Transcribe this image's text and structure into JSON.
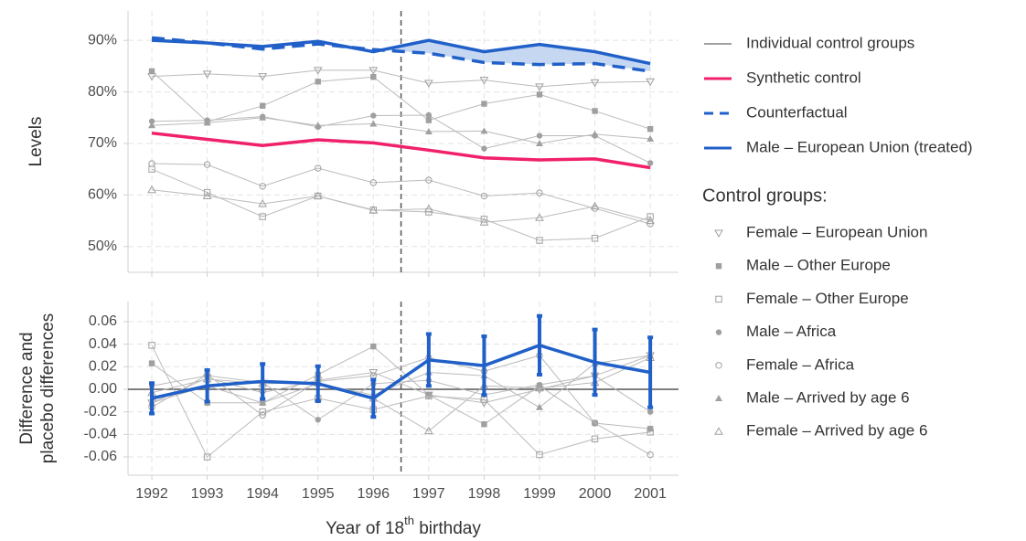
{
  "chart_data": [
    {
      "type": "line",
      "ylabel": "Levels",
      "x": [
        1992,
        1993,
        1994,
        1995,
        1996,
        1997,
        1998,
        1999,
        2000,
        2001
      ],
      "xlim": [
        1991.57,
        2001.51
      ],
      "ylim": [
        45,
        95.7
      ],
      "yticks": [
        {
          "value": 50,
          "label": "50%"
        },
        {
          "value": 60,
          "label": "60%"
        },
        {
          "value": 70,
          "label": "70%"
        },
        {
          "value": 80,
          "label": "80%"
        },
        {
          "value": 90,
          "label": "90%"
        }
      ],
      "grid": true,
      "vline": 1996.5,
      "shade_from": 1996,
      "shade_color": "#c6d7f1",
      "control_lines_label": "Individual control groups",
      "control_color": "#bbbbbb",
      "control_legend_title": "Control groups:",
      "series": [
        {
          "name": "Synthetic control",
          "color": "#f0206a",
          "style": "solid",
          "values": [
            72.0,
            70.8,
            69.6,
            70.7,
            70.1,
            68.7,
            67.2,
            66.8,
            67.0,
            65.3
          ]
        },
        {
          "name": "Counterfactual",
          "color": "#2060c8",
          "style": "dashed",
          "values": [
            90.5,
            89.5,
            88.3,
            89.3,
            88.2,
            87.5,
            85.7,
            85.3,
            85.5,
            84.0
          ]
        },
        {
          "name": "Male – European Union (treated)",
          "color": "#2060c8",
          "style": "solid",
          "values": [
            90.0,
            89.5,
            88.8,
            89.8,
            87.8,
            90.0,
            87.8,
            89.2,
            87.8,
            85.5
          ]
        }
      ],
      "controls": [
        {
          "name": "Female – European Union",
          "marker": "triangle-down-open",
          "values": [
            83.0,
            83.5,
            83.0,
            84.2,
            84.2,
            81.7,
            82.3,
            81.0,
            81.8,
            82.0
          ]
        },
        {
          "name": "Male – Other Europe",
          "marker": "square",
          "values": [
            84.0,
            74.2,
            77.3,
            82.0,
            82.9,
            74.5,
            77.7,
            79.5,
            76.3,
            72.8
          ]
        },
        {
          "name": "Female – Other Europe",
          "marker": "square-open",
          "values": [
            65.0,
            60.5,
            55.8,
            59.8,
            57.1,
            56.7,
            55.3,
            51.2,
            51.6,
            55.8
          ]
        },
        {
          "name": "Male – Africa",
          "marker": "circle",
          "values": [
            74.3,
            74.5,
            75.2,
            73.2,
            75.4,
            75.5,
            69.0,
            71.5,
            71.5,
            66.2
          ]
        },
        {
          "name": "Female – Africa",
          "marker": "circle-open",
          "values": [
            66.1,
            65.9,
            61.7,
            65.2,
            62.4,
            62.9,
            59.8,
            60.4,
            57.4,
            54.4
          ]
        },
        {
          "name": "Male – Arrived by age 6",
          "marker": "triangle",
          "values": [
            73.5,
            74.0,
            75.0,
            73.5,
            73.8,
            72.3,
            72.4,
            70.0,
            71.8,
            70.9
          ]
        },
        {
          "name": "Female – Arrived by age 6",
          "marker": "triangle-open",
          "values": [
            61.0,
            59.8,
            58.3,
            59.8,
            57.0,
            57.3,
            54.7,
            55.6,
            57.8,
            55.0
          ]
        }
      ]
    },
    {
      "type": "line",
      "ylabel": [
        "Difference and",
        "placebo differences"
      ],
      "xlabel": {
        "text": "Year of 18",
        "superscript": "th",
        "suffix": " birthday"
      },
      "x": [
        1992,
        1993,
        1994,
        1995,
        1996,
        1997,
        1998,
        1999,
        2000,
        2001
      ],
      "xticks": [
        1992,
        1993,
        1994,
        1995,
        1996,
        1997,
        1998,
        1999,
        2000,
        2001
      ],
      "xlim": [
        1991.57,
        2001.51
      ],
      "ylim": [
        -0.0762,
        0.0778
      ],
      "yticks": [
        -0.06,
        -0.04,
        -0.02,
        {
          "value": 0,
          "label": "0.00"
        },
        0.02,
        0.04,
        0.06
      ],
      "grid": true,
      "vline": 1996.5,
      "hline": 0,
      "control_color": "#bbbbbb",
      "series": [
        {
          "color": "#2060c8",
          "values": [
            -0.008,
            0.003,
            0.007,
            0.005,
            -0.008,
            0.026,
            0.021,
            0.039,
            0.024,
            0.015
          ],
          "errors": [
            0.0135,
            0.014,
            0.0155,
            0.0155,
            0.0165,
            0.023,
            0.026,
            0.026,
            0.029,
            0.031
          ]
        }
      ],
      "controls": [
        {
          "marker": "triangle-down-open",
          "values": [
            -0.012,
            0.01,
            -0.003,
            0.008,
            0.015,
            -0.005,
            -0.012,
            0.0,
            0.012,
            0.03
          ]
        },
        {
          "marker": "square",
          "values": [
            0.023,
            -0.012,
            -0.012,
            0.013,
            0.038,
            -0.005,
            -0.031,
            0.003,
            -0.03,
            -0.035
          ]
        },
        {
          "marker": "square-open",
          "values": [
            0.039,
            -0.06,
            -0.02,
            -0.008,
            -0.018,
            -0.006,
            -0.009,
            -0.058,
            -0.044,
            -0.038
          ]
        },
        {
          "marker": "circle",
          "values": [
            0.003,
            0.012,
            0.006,
            -0.027,
            0.005,
            0.008,
            -0.005,
            0.004,
            0.012,
            -0.02
          ]
        },
        {
          "marker": "circle-open",
          "values": [
            -0.016,
            0.013,
            -0.023,
            0.007,
            0.012,
            0.028,
            0.016,
            0.03,
            -0.03,
            -0.058
          ]
        },
        {
          "marker": "triangle",
          "values": [
            -0.012,
            0.003,
            -0.012,
            0.005,
            -0.005,
            0.015,
            0.012,
            -0.016,
            0.023,
            0.03
          ]
        },
        {
          "marker": "triangle-open",
          "values": [
            -0.003,
            0.009,
            0.005,
            0.006,
            -0.008,
            -0.037,
            0.003,
            0.001,
            0.006,
            0.028
          ]
        }
      ]
    }
  ]
}
